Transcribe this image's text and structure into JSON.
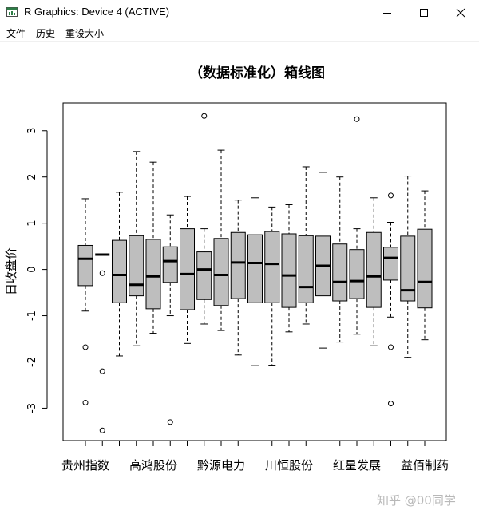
{
  "window": {
    "title": "R Graphics: Device 4 (ACTIVE)",
    "controls": [
      "minimize",
      "maximize",
      "close"
    ]
  },
  "menu": {
    "items": [
      "文件",
      "历史",
      "重设大小"
    ]
  },
  "watermark": "知乎 @00同学",
  "chart_data": {
    "type": "boxplot",
    "title": "（数据标准化）箱线图",
    "xlabel": "",
    "ylabel": "日收盘价",
    "ylim": [
      -3.7,
      3.6
    ],
    "yticks": [
      -3,
      -2,
      -1,
      0,
      1,
      2,
      3
    ],
    "box_fill": "#bebebe",
    "x_tick_labels": [
      {
        "index": 1,
        "label": "贵州指数"
      },
      {
        "index": 5,
        "label": "高鸿股份"
      },
      {
        "index": 9,
        "label": "黔源电力"
      },
      {
        "index": 13,
        "label": "川恒股份"
      },
      {
        "index": 17,
        "label": "红星发展"
      },
      {
        "index": 21,
        "label": "益佰制药"
      }
    ],
    "boxes": [
      {
        "wlo": -0.9,
        "q1": -0.35,
        "med": 0.23,
        "q3": 0.52,
        "whi": 1.53,
        "outliers": [
          -1.68,
          -2.88
        ]
      },
      {
        "wlo": 0.32,
        "q1": 0.32,
        "med": 0.32,
        "q3": 0.32,
        "whi": 0.32,
        "outliers": [
          -0.08,
          -2.2,
          -3.48
        ]
      },
      {
        "wlo": -1.87,
        "q1": -0.72,
        "med": -0.12,
        "q3": 0.63,
        "whi": 1.67,
        "outliers": []
      },
      {
        "wlo": -1.65,
        "q1": -0.57,
        "med": -0.33,
        "q3": 0.73,
        "whi": 2.55,
        "outliers": []
      },
      {
        "wlo": -1.38,
        "q1": -0.85,
        "med": -0.15,
        "q3": 0.65,
        "whi": 2.32,
        "outliers": []
      },
      {
        "wlo": -1.0,
        "q1": -0.28,
        "med": 0.18,
        "q3": 0.49,
        "whi": 1.18,
        "outliers": [
          -3.3
        ]
      },
      {
        "wlo": -1.6,
        "q1": -0.87,
        "med": -0.1,
        "q3": 0.88,
        "whi": 1.58,
        "outliers": []
      },
      {
        "wlo": -1.18,
        "q1": -0.65,
        "med": 0.0,
        "q3": 0.38,
        "whi": 0.88,
        "outliers": [
          3.32
        ]
      },
      {
        "wlo": -1.32,
        "q1": -0.78,
        "med": -0.12,
        "q3": 0.67,
        "whi": 2.58,
        "outliers": []
      },
      {
        "wlo": -1.85,
        "q1": -0.63,
        "med": 0.15,
        "q3": 0.8,
        "whi": 1.5,
        "outliers": []
      },
      {
        "wlo": -2.08,
        "q1": -0.72,
        "med": 0.14,
        "q3": 0.75,
        "whi": 1.55,
        "outliers": []
      },
      {
        "wlo": -2.07,
        "q1": -0.72,
        "med": 0.12,
        "q3": 0.82,
        "whi": 1.35,
        "outliers": []
      },
      {
        "wlo": -1.35,
        "q1": -0.82,
        "med": -0.13,
        "q3": 0.77,
        "whi": 1.4,
        "outliers": []
      },
      {
        "wlo": -1.18,
        "q1": -0.72,
        "med": -0.38,
        "q3": 0.73,
        "whi": 2.22,
        "outliers": []
      },
      {
        "wlo": -1.7,
        "q1": -0.57,
        "med": 0.08,
        "q3": 0.72,
        "whi": 2.1,
        "outliers": []
      },
      {
        "wlo": -1.57,
        "q1": -0.68,
        "med": -0.27,
        "q3": 0.55,
        "whi": 2.0,
        "outliers": []
      },
      {
        "wlo": -1.4,
        "q1": -0.63,
        "med": -0.25,
        "q3": 0.43,
        "whi": 0.88,
        "outliers": [
          3.25
        ]
      },
      {
        "wlo": -1.65,
        "q1": -0.82,
        "med": -0.15,
        "q3": 0.8,
        "whi": 1.55,
        "outliers": []
      },
      {
        "wlo": -1.03,
        "q1": -0.23,
        "med": 0.25,
        "q3": 0.48,
        "whi": 1.02,
        "outliers": [
          1.6,
          -1.68,
          -2.9
        ]
      },
      {
        "wlo": -1.9,
        "q1": -0.68,
        "med": -0.45,
        "q3": 0.72,
        "whi": 2.02,
        "outliers": []
      },
      {
        "wlo": -1.52,
        "q1": -0.83,
        "med": -0.27,
        "q3": 0.87,
        "whi": 1.7,
        "outliers": []
      }
    ]
  }
}
